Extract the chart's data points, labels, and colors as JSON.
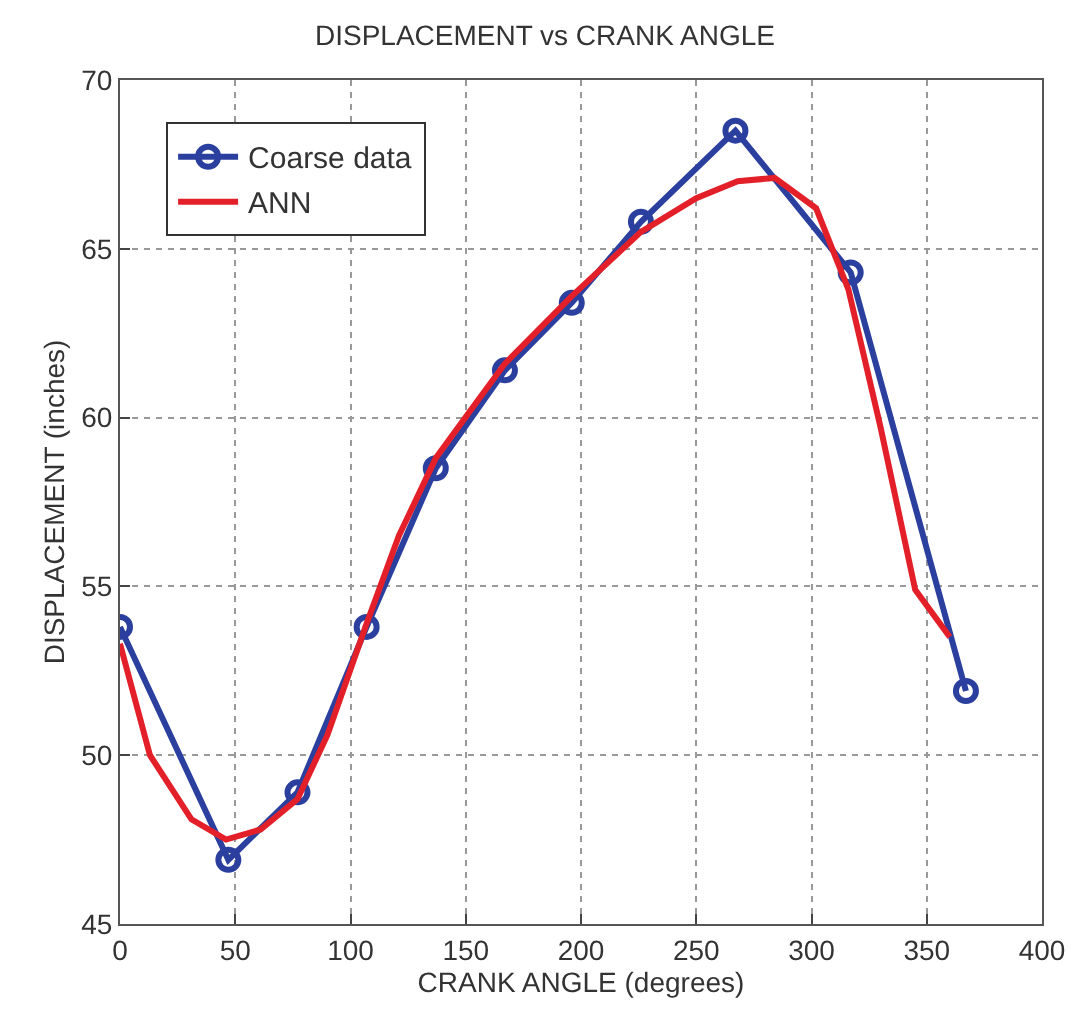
{
  "chart_data": {
    "type": "line",
    "title": "DISPLACEMENT vs CRANK ANGLE",
    "xlabel": "CRANK ANGLE (degrees)",
    "ylabel": "DISPLACEMENT (inches)",
    "xlim": [
      0,
      400
    ],
    "xticks": [
      0,
      50,
      100,
      150,
      200,
      250,
      300,
      350,
      400
    ],
    "ylim": [
      45,
      70
    ],
    "yticks": [
      45,
      50,
      55,
      60,
      65,
      70
    ],
    "grid": true,
    "legend": "top left",
    "series": [
      {
        "name": "Coarse data",
        "color": "#2b3f9e",
        "marker": "circle",
        "x": [
          0,
          47,
          77,
          107,
          137,
          167,
          196,
          226,
          267,
          317,
          367
        ],
        "values": [
          53.8,
          46.9,
          48.9,
          53.8,
          58.5,
          61.4,
          63.4,
          65.8,
          68.5,
          64.3,
          51.9
        ]
      },
      {
        "name": "ANN",
        "color": "#e3202a",
        "marker": "none",
        "x": [
          0,
          13,
          31,
          46,
          61,
          77,
          90,
          107,
          121,
          137,
          153,
          167,
          196,
          226,
          250,
          268,
          284,
          302,
          316,
          330,
          345,
          360
        ],
        "values": [
          53.3,
          50.0,
          48.1,
          47.5,
          47.8,
          48.7,
          50.6,
          53.9,
          56.5,
          58.8,
          60.3,
          61.6,
          63.6,
          65.5,
          66.5,
          67.0,
          67.1,
          66.2,
          63.8,
          59.7,
          54.9,
          53.5
        ]
      }
    ]
  }
}
